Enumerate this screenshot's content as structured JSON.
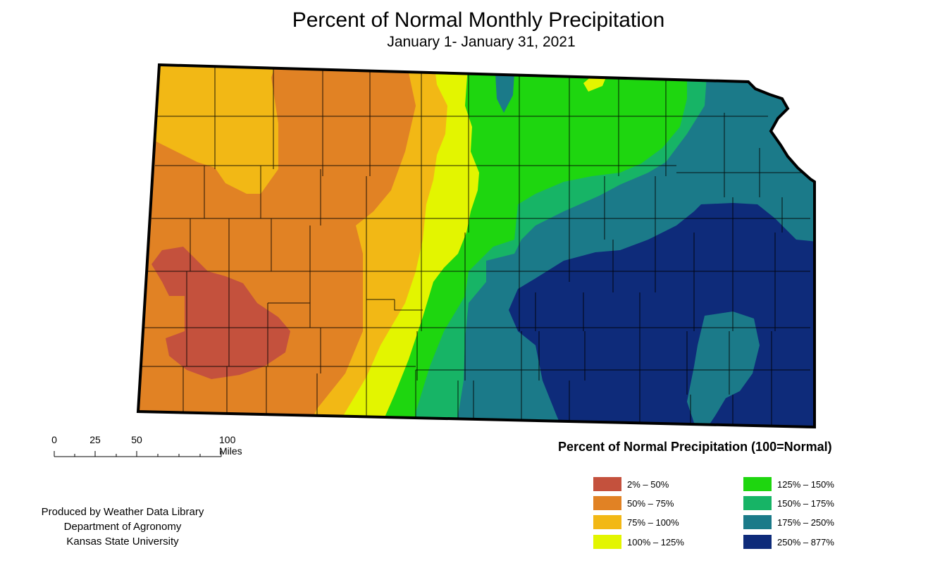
{
  "title": "Percent of Normal Monthly Precipitation",
  "subtitle": "January 1- January 31, 2021",
  "legend": {
    "title": "Percent of Normal Precipitation (100=Normal)",
    "classes": [
      {
        "label": "2% – 50%",
        "color": "#c4513d"
      },
      {
        "label": "50% – 75%",
        "color": "#e18224"
      },
      {
        "label": "75% – 100%",
        "color": "#f2b815"
      },
      {
        "label": "100% – 125%",
        "color": "#e3f500"
      },
      {
        "label": "125% – 150%",
        "color": "#1ed60f"
      },
      {
        "label": "150% – 175%",
        "color": "#17b466"
      },
      {
        "label": "175% – 250%",
        "color": "#1b7a89"
      },
      {
        "label": "250% – 877%",
        "color": "#0e2b7a"
      }
    ]
  },
  "scale": {
    "ticks": [
      "0",
      "25",
      "50",
      "100 Miles"
    ]
  },
  "credits": {
    "line1": "Produced by Weather Data Library",
    "line2": "Department of Agronomy",
    "line3": "Kansas State University"
  }
}
